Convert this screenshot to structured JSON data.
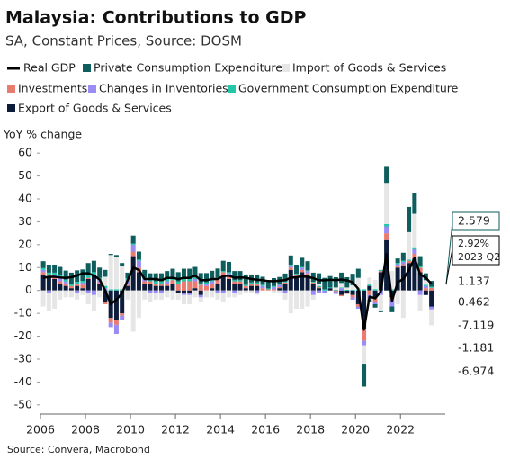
{
  "chart_data": {
    "type": "stacked-bar-line",
    "title": "Malaysia: Contributions to GDP",
    "subtitle": "SA, Constant Prices, Source: DOSM",
    "y_label": "YoY % change",
    "source": "Source: Convera, Macrobond",
    "annotation": "2023 Q2",
    "xlim": [
      2006,
      2023.75
    ],
    "xticks": [
      2006,
      2008,
      2010,
      2012,
      2014,
      2016,
      2018,
      2020,
      2022
    ],
    "ylim": [
      -54,
      64
    ],
    "yticks": [
      -50,
      -40,
      -30,
      -20,
      -10,
      0,
      10,
      20,
      30,
      40,
      50,
      60
    ],
    "grid": false,
    "x": [
      2006,
      2006.25,
      2006.5,
      2006.75,
      2007,
      2007.25,
      2007.5,
      2007.75,
      2008,
      2008.25,
      2008.5,
      2008.75,
      2009,
      2009.25,
      2009.5,
      2009.75,
      2010,
      2010.25,
      2010.5,
      2010.75,
      2011,
      2011.25,
      2011.5,
      2011.75,
      2012,
      2012.25,
      2012.5,
      2012.75,
      2013,
      2013.25,
      2013.5,
      2013.75,
      2014,
      2014.25,
      2014.5,
      2014.75,
      2015,
      2015.25,
      2015.5,
      2015.75,
      2016,
      2016.25,
      2016.5,
      2016.75,
      2017,
      2017.25,
      2017.5,
      2017.75,
      2018,
      2018.25,
      2018.5,
      2018.75,
      2019,
      2019.25,
      2019.5,
      2019.75,
      2020,
      2020.25,
      2020.5,
      2020.75,
      2021,
      2021.25,
      2021.5,
      2021.75,
      2022,
      2022.25,
      2022.5,
      2022.75,
      2023,
      2023.25
    ],
    "series": [
      {
        "name": "Real GDP",
        "kind": "line",
        "color": "#000000",
        "values": [
          5.5,
          6,
          6,
          5.7,
          5.5,
          5.8,
          6.5,
          7.5,
          7.5,
          6.5,
          4.8,
          0.1,
          -6,
          -4,
          -1.2,
          4.5,
          10,
          9,
          5,
          5,
          5,
          4.5,
          5.5,
          5.5,
          5,
          5.5,
          5.5,
          6.5,
          4.5,
          4.5,
          5,
          5,
          6.3,
          6.5,
          5.6,
          5.7,
          5.6,
          5,
          4.7,
          4.5,
          4.1,
          4,
          4.3,
          4.5,
          5.6,
          5.8,
          6.2,
          5.9,
          5.4,
          4.5,
          4.4,
          4.7,
          4.5,
          4.8,
          4.4,
          3.6,
          0.7,
          -17.1,
          -2.7,
          -3.4,
          -0.5,
          15.9,
          -4.5,
          3.6,
          5,
          8.9,
          14.2,
          7,
          5.6,
          2.92
        ],
        "value_labels": [
          null,
          null,
          null,
          null,
          null,
          null,
          null,
          null,
          null,
          null,
          null,
          null,
          null,
          null,
          null,
          null,
          null,
          null,
          null,
          null,
          null,
          null,
          null,
          null,
          null,
          null,
          null,
          null,
          null,
          null,
          null,
          null,
          null,
          null,
          null,
          null,
          null,
          null,
          null,
          null,
          null,
          null,
          null,
          null,
          null,
          null,
          null,
          null,
          null,
          null,
          null,
          null,
          null,
          null,
          null,
          null,
          null,
          null,
          null,
          null,
          null,
          null,
          null,
          null,
          null,
          null,
          null,
          null,
          null,
          "2.92%"
        ]
      },
      {
        "name": "Private Consumption Expenditure",
        "color": "#0f5e5e",
        "values": [
          3,
          3.5,
          3.5,
          3.5,
          4,
          5,
          5,
          5,
          5.5,
          5,
          4.5,
          3,
          0.5,
          1,
          1.5,
          2.5,
          3.5,
          3.5,
          3.5,
          3,
          3.5,
          3.5,
          3.5,
          4,
          4,
          4.5,
          4.5,
          4.5,
          4.5,
          4,
          4,
          4,
          4.5,
          4.5,
          4,
          4,
          4.5,
          3.5,
          3.5,
          3.5,
          3.5,
          3.5,
          3,
          3.5,
          4,
          4,
          4,
          4,
          4,
          4.5,
          5,
          5,
          4.5,
          4.5,
          4.5,
          5,
          4,
          -10,
          -1,
          -1.5,
          -0.5,
          7,
          -2.5,
          2,
          3.5,
          11,
          9,
          4.5,
          3,
          2.579
        ]
      },
      {
        "name": "Import of Goods & Services",
        "color": "#e6e6e6",
        "values": [
          -7,
          -8,
          -8,
          -4,
          -3,
          -3,
          -3,
          -2,
          -5,
          -7,
          -3,
          4,
          15,
          14,
          10,
          -4,
          -18,
          -12,
          -4,
          -4,
          -3,
          -3,
          -3,
          -4,
          -3,
          -4,
          -4,
          -3,
          -2,
          -3,
          -3,
          -3,
          -4,
          -3,
          -2,
          -2,
          -1,
          -1,
          -1,
          0,
          0,
          -1,
          -1,
          -3,
          -10,
          -8,
          -8,
          -7,
          -2,
          1,
          0,
          0,
          1,
          2,
          1,
          2,
          5,
          -8,
          3,
          4,
          -7,
          18,
          8,
          -6,
          -12,
          12,
          15,
          -7,
          2,
          -6.974
        ]
      },
      {
        "name": "Investments",
        "color": "#e97b70",
        "values": [
          1,
          1,
          1,
          1,
          1,
          1,
          1,
          1.5,
          0.5,
          0,
          0.5,
          -1,
          -2,
          -2,
          -1,
          0.5,
          2,
          2,
          1,
          1,
          1,
          1,
          1,
          1.5,
          3,
          4,
          4,
          3,
          2.5,
          2,
          2,
          2,
          2,
          1.5,
          1,
          1,
          1,
          1,
          1,
          1,
          0.5,
          0.5,
          0.5,
          0.5,
          1,
          1,
          1,
          0.5,
          0.5,
          0.5,
          0,
          0,
          -0.5,
          -0.5,
          -0.5,
          -1,
          -1,
          -5,
          -2,
          -2,
          0.5,
          3,
          -1,
          0.5,
          0.5,
          1,
          2,
          2,
          1,
          1.137
        ]
      },
      {
        "name": "Changes in Inventories",
        "color": "#9a8cf5",
        "values": [
          1,
          -1,
          1,
          2,
          1,
          0,
          -1,
          1,
          -1,
          -2,
          1,
          1,
          -2,
          -4,
          -2,
          2,
          3,
          3,
          1,
          -1,
          -1,
          -1,
          1,
          0,
          0,
          -1,
          -1,
          1,
          -1,
          1,
          1,
          -1,
          -1,
          1,
          -1,
          0,
          0,
          0,
          -1,
          1,
          0,
          1,
          1,
          -1,
          1,
          0,
          1,
          1,
          -2,
          -1,
          -1,
          0,
          -1,
          1,
          0,
          -1,
          -1,
          -2,
          -2,
          -1,
          -2,
          3,
          -3,
          1,
          1,
          0,
          2,
          -2,
          1,
          -1.181
        ]
      },
      {
        "name": "Government Consumption Expenditure",
        "color": "#22c7a9",
        "values": [
          0.8,
          0.8,
          0.8,
          0.8,
          0.7,
          0.8,
          0.8,
          0.7,
          1,
          1,
          1,
          1,
          0.5,
          0.5,
          0.5,
          0.8,
          0.5,
          0.5,
          0.5,
          0.5,
          1,
          1,
          1,
          1,
          1,
          1,
          1,
          0.8,
          0.6,
          0.6,
          0.6,
          0.6,
          0.5,
          0.5,
          0.5,
          0.5,
          0.5,
          0.5,
          0.5,
          0.5,
          0.4,
          0.4,
          0.4,
          0.4,
          0.3,
          0.3,
          0.3,
          0.3,
          0.3,
          0.5,
          0.5,
          0.3,
          0.3,
          0.3,
          0.3,
          0.3,
          0.5,
          0.5,
          0.6,
          0.6,
          0.5,
          1,
          0.5,
          0.5,
          0.5,
          0.5,
          0.5,
          0.5,
          0.5,
          0.462
        ]
      },
      {
        "name": "Export of Goods & Services",
        "color": "#0c1c3a",
        "values": [
          7,
          6,
          5,
          3,
          2,
          1,
          2,
          1,
          5,
          7,
          3,
          -5,
          -12,
          -13,
          -10,
          2,
          15,
          8,
          3,
          3,
          2,
          2,
          2,
          3,
          -1,
          -1,
          -1,
          1,
          -2,
          0,
          1,
          3,
          6,
          5,
          3,
          3,
          1,
          2,
          2,
          0,
          0,
          0,
          1,
          3,
          9,
          6,
          8,
          7,
          3,
          1,
          0,
          1,
          0,
          -2,
          -1,
          -2,
          -6,
          -17,
          2,
          -3,
          8,
          22,
          -3,
          10,
          11,
          12,
          14,
          8,
          -2,
          -7.119
        ]
      }
    ]
  }
}
